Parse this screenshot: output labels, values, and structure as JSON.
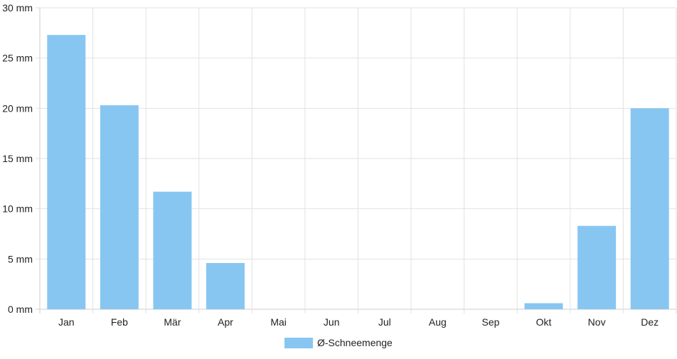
{
  "chart_data": {
    "type": "bar",
    "categories": [
      "Jan",
      "Feb",
      "Mär",
      "Apr",
      "Mai",
      "Jun",
      "Jul",
      "Aug",
      "Sep",
      "Okt",
      "Nov",
      "Dez"
    ],
    "series": [
      {
        "name": "Ø-Schneemenge",
        "values": [
          27.3,
          20.3,
          11.7,
          4.6,
          0,
          0,
          0,
          0,
          0,
          0.6,
          8.3,
          20.0
        ]
      }
    ],
    "yticks": [
      "0 mm",
      "5 mm",
      "10 mm",
      "15 mm",
      "20 mm",
      "25 mm",
      "30 mm"
    ],
    "ylim": [
      0,
      30
    ],
    "y_step": 5,
    "grid": true,
    "legend_position": "bottom-center",
    "colors": {
      "bar": "#88c6f2",
      "grid": "#e2e2e2",
      "axis": "#cccccc",
      "text": "#222222"
    }
  }
}
